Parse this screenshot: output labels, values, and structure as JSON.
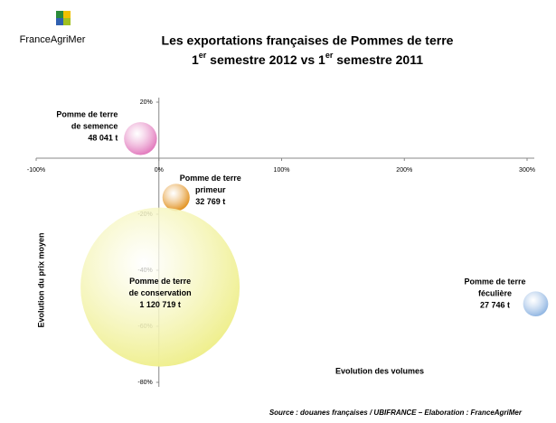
{
  "logo_text": "FranceAgriMer",
  "chart_data": {
    "type": "bubble",
    "title": "Les exportations françaises de Pommes de terre",
    "subtitle_parts": [
      "1",
      "er",
      " semestre 2012 vs 1",
      "er",
      " semestre 2011"
    ],
    "x_label": "Evolution des volumes",
    "y_label": "Evolution du prix moyen",
    "source": "Source : douanes françaises / UBIFRANCE – Elaboration : FranceAgriMer",
    "xlim": [
      -100,
      300
    ],
    "ylim": [
      -80,
      20
    ],
    "xticks": [
      {
        "value": -100,
        "label": "-100%"
      },
      {
        "value": 0,
        "label": "0%"
      },
      {
        "value": 100,
        "label": "100%"
      },
      {
        "value": 200,
        "label": "200%"
      },
      {
        "value": 300,
        "label": "300%"
      }
    ],
    "yticks": [
      {
        "value": 20,
        "label": "20%"
      },
      {
        "value": -20,
        "label": "-20%"
      },
      {
        "value": -40,
        "label": "-40%"
      },
      {
        "value": -60,
        "label": "-60%"
      },
      {
        "value": -80,
        "label": "-80%"
      }
    ],
    "series": [
      {
        "label_lines": [
          "Pomme de terre",
          "de semence"
        ],
        "color": "#e070b8",
        "x": -15,
        "y": 7,
        "size": 48041,
        "value_label": "48 041 t"
      },
      {
        "label_lines": [
          "Pomme de terre",
          "primeur"
        ],
        "color": "#e08a10",
        "x": 14,
        "y": -14,
        "size": 32769,
        "value_label": "32 769 t"
      },
      {
        "label_lines": [
          "Pomme de terre",
          "de conservation"
        ],
        "color": "#eeee88",
        "x": 1,
        "y": -46,
        "size": 1120719,
        "value_label": "1 120 719 t"
      },
      {
        "label_lines": [
          "Pomme de terre",
          "féculière"
        ],
        "color": "#88b0e0",
        "x": 307,
        "y": -52,
        "size": 27746,
        "value_label": "27 746 t"
      }
    ]
  }
}
